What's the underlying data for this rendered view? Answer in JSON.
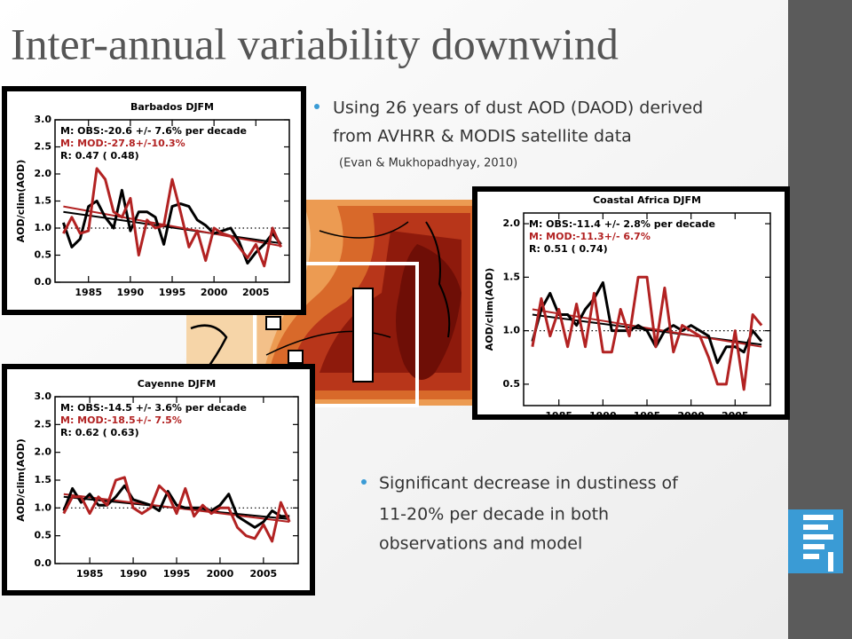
{
  "title": "Inter-annual variability downwind",
  "bullets": [
    {
      "text": [
        "Using 26 years of dust AOD (DAOD) derived",
        "from AVHRR & MODIS satellite data"
      ],
      "note": "(Evan & Mukhopadhyay, 2010)"
    },
    {
      "text": [
        "Significant decrease in dustiness of",
        "11-20% per decade in both",
        "observations and model"
      ]
    }
  ],
  "chart_data": [
    {
      "type": "line",
      "title": "Barbados DJFM",
      "y_label": "AOD/clim(AOD)",
      "annotations": [
        {
          "text": "M: OBS:-20.6 +/- 7.6% per decade",
          "color": "#000000"
        },
        {
          "text": "M: MOD:-27.8+/-10.3%",
          "color": "#b22222"
        },
        {
          "text": "R: 0.47 ( 0.48)",
          "color": "#000000"
        }
      ],
      "x": [
        1982,
        1983,
        1984,
        1985,
        1986,
        1987,
        1988,
        1989,
        1990,
        1991,
        1992,
        1993,
        1994,
        1995,
        1996,
        1997,
        1998,
        1999,
        2000,
        2001,
        2002,
        2003,
        2004,
        2005,
        2006,
        2007,
        2008
      ],
      "xlim": [
        1981,
        2009
      ],
      "xticks": [
        1985,
        1990,
        1995,
        2000,
        2005
      ],
      "ylim": [
        0,
        3
      ],
      "yticks": [
        {
          "value": 0,
          "label": "0.0"
        },
        0.5,
        {
          "value": 1,
          "label": "1.0"
        },
        1.5,
        {
          "value": 2,
          "label": "2.0"
        },
        2.5,
        {
          "value": 3,
          "label": "3.0"
        }
      ],
      "reference_line": 1,
      "series": [
        {
          "color": "#000000",
          "values": [
            1.1,
            0.65,
            0.8,
            1.4,
            1.5,
            1.2,
            1.0,
            1.7,
            0.95,
            1.3,
            1.3,
            1.2,
            0.7,
            1.4,
            1.45,
            1.4,
            1.15,
            1.05,
            0.9,
            0.95,
            1.0,
            0.75,
            0.35,
            0.55,
            0.7,
            0.9,
            0.7
          ]
        },
        {
          "color": "#b22222",
          "values": [
            0.9,
            1.2,
            0.9,
            0.95,
            2.1,
            1.9,
            1.3,
            1.2,
            1.55,
            0.5,
            1.15,
            1.0,
            1.05,
            1.9,
            1.3,
            0.65,
            0.95,
            0.4,
            1.0,
            0.9,
            0.85,
            0.65,
            0.45,
            0.7,
            0.3,
            1.0,
            0.65
          ]
        }
      ],
      "trends": [
        {
          "color": "#000000",
          "x": [
            1982,
            2008
          ],
          "values": [
            1.3,
            0.72
          ]
        },
        {
          "color": "#b22222",
          "x": [
            1982,
            2008
          ],
          "values": [
            1.4,
            0.67
          ]
        }
      ]
    },
    {
      "type": "line",
      "title": "Coastal Africa DJFM",
      "y_label": "AOD/clim(AOD)",
      "annotations": [
        {
          "text": "M: OBS:-11.4 +/- 2.8% per decade",
          "color": "#000000"
        },
        {
          "text": "M: MOD:-11.3+/- 6.7%",
          "color": "#b22222"
        },
        {
          "text": "R: 0.51 ( 0.74)",
          "color": "#000000"
        }
      ],
      "x": [
        1982,
        1983,
        1984,
        1985,
        1986,
        1987,
        1988,
        1989,
        1990,
        1991,
        1992,
        1993,
        1994,
        1995,
        1996,
        1997,
        1998,
        1999,
        2000,
        2001,
        2002,
        2003,
        2004,
        2005,
        2006,
        2007,
        2008
      ],
      "xlim": [
        1981,
        2009
      ],
      "xticks": [
        1985,
        1990,
        1995,
        2000,
        2005
      ],
      "ylim": [
        0.3,
        2.1
      ],
      "yticks": [
        0.5,
        {
          "value": 1,
          "label": "1.0"
        },
        1.5,
        {
          "value": 2,
          "label": "2.0"
        }
      ],
      "reference_line": 1,
      "series": [
        {
          "color": "#000000",
          "values": [
            0.9,
            1.2,
            1.35,
            1.15,
            1.15,
            1.05,
            1.2,
            1.3,
            1.45,
            1.0,
            1.0,
            1.0,
            1.05,
            1.0,
            0.85,
            1.0,
            1.05,
            1.0,
            1.05,
            1.0,
            0.95,
            0.7,
            0.85,
            0.85,
            0.8,
            1.0,
            0.9
          ]
        },
        {
          "color": "#b22222",
          "values": [
            0.85,
            1.3,
            0.95,
            1.2,
            0.85,
            1.25,
            0.85,
            1.35,
            0.8,
            0.8,
            1.2,
            0.95,
            1.5,
            1.5,
            0.85,
            1.4,
            0.8,
            1.05,
            1.0,
            0.95,
            0.75,
            0.5,
            0.5,
            1.0,
            0.45,
            1.15,
            1.05
          ]
        }
      ],
      "trends": [
        {
          "color": "#000000",
          "x": [
            1982,
            2008
          ],
          "values": [
            1.15,
            0.87
          ]
        },
        {
          "color": "#b22222",
          "x": [
            1982,
            2008
          ],
          "values": [
            1.2,
            0.85
          ]
        }
      ]
    },
    {
      "type": "line",
      "title": "Cayenne DJFM",
      "y_label": "AOD/clim(AOD)",
      "annotations": [
        {
          "text": "M: OBS:-14.5 +/- 3.6% per decade",
          "color": "#000000"
        },
        {
          "text": "M: MOD:-18.5+/- 7.5%",
          "color": "#b22222"
        },
        {
          "text": "R: 0.62 ( 0.63)",
          "color": "#000000"
        }
      ],
      "x": [
        1982,
        1983,
        1984,
        1985,
        1986,
        1987,
        1988,
        1989,
        1990,
        1991,
        1992,
        1993,
        1994,
        1995,
        1996,
        1997,
        1998,
        1999,
        2000,
        2001,
        2002,
        2003,
        2004,
        2005,
        2006,
        2007,
        2008
      ],
      "xlim": [
        1981,
        2009
      ],
      "xticks": [
        1985,
        1990,
        1995,
        2000,
        2005
      ],
      "ylim": [
        0,
        3
      ],
      "yticks": [
        {
          "value": 0,
          "label": "0.0"
        },
        0.5,
        {
          "value": 1,
          "label": "1.0"
        },
        1.5,
        {
          "value": 2,
          "label": "2.0"
        },
        2.5,
        {
          "value": 3,
          "label": "3.0"
        }
      ],
      "reference_line": 1,
      "series": [
        {
          "color": "#000000",
          "values": [
            0.95,
            1.35,
            1.1,
            1.25,
            1.05,
            1.05,
            1.2,
            1.4,
            1.15,
            1.1,
            1.05,
            0.95,
            1.3,
            1.05,
            1.0,
            1.0,
            1.0,
            0.95,
            1.05,
            1.25,
            0.85,
            0.75,
            0.65,
            0.75,
            0.95,
            0.85,
            0.85
          ]
        },
        {
          "color": "#b22222",
          "values": [
            0.9,
            1.2,
            1.2,
            0.9,
            1.2,
            1.05,
            1.5,
            1.55,
            1.0,
            0.9,
            1.0,
            1.4,
            1.25,
            0.9,
            1.35,
            0.85,
            1.05,
            0.9,
            1.0,
            1.0,
            0.65,
            0.5,
            0.45,
            0.7,
            0.4,
            1.1,
            0.75
          ]
        }
      ],
      "trends": [
        {
          "color": "#000000",
          "x": [
            1982,
            2008
          ],
          "values": [
            1.2,
            0.8
          ]
        },
        {
          "color": "#b22222",
          "x": [
            1982,
            2008
          ],
          "values": [
            1.25,
            0.75
          ]
        }
      ]
    }
  ]
}
